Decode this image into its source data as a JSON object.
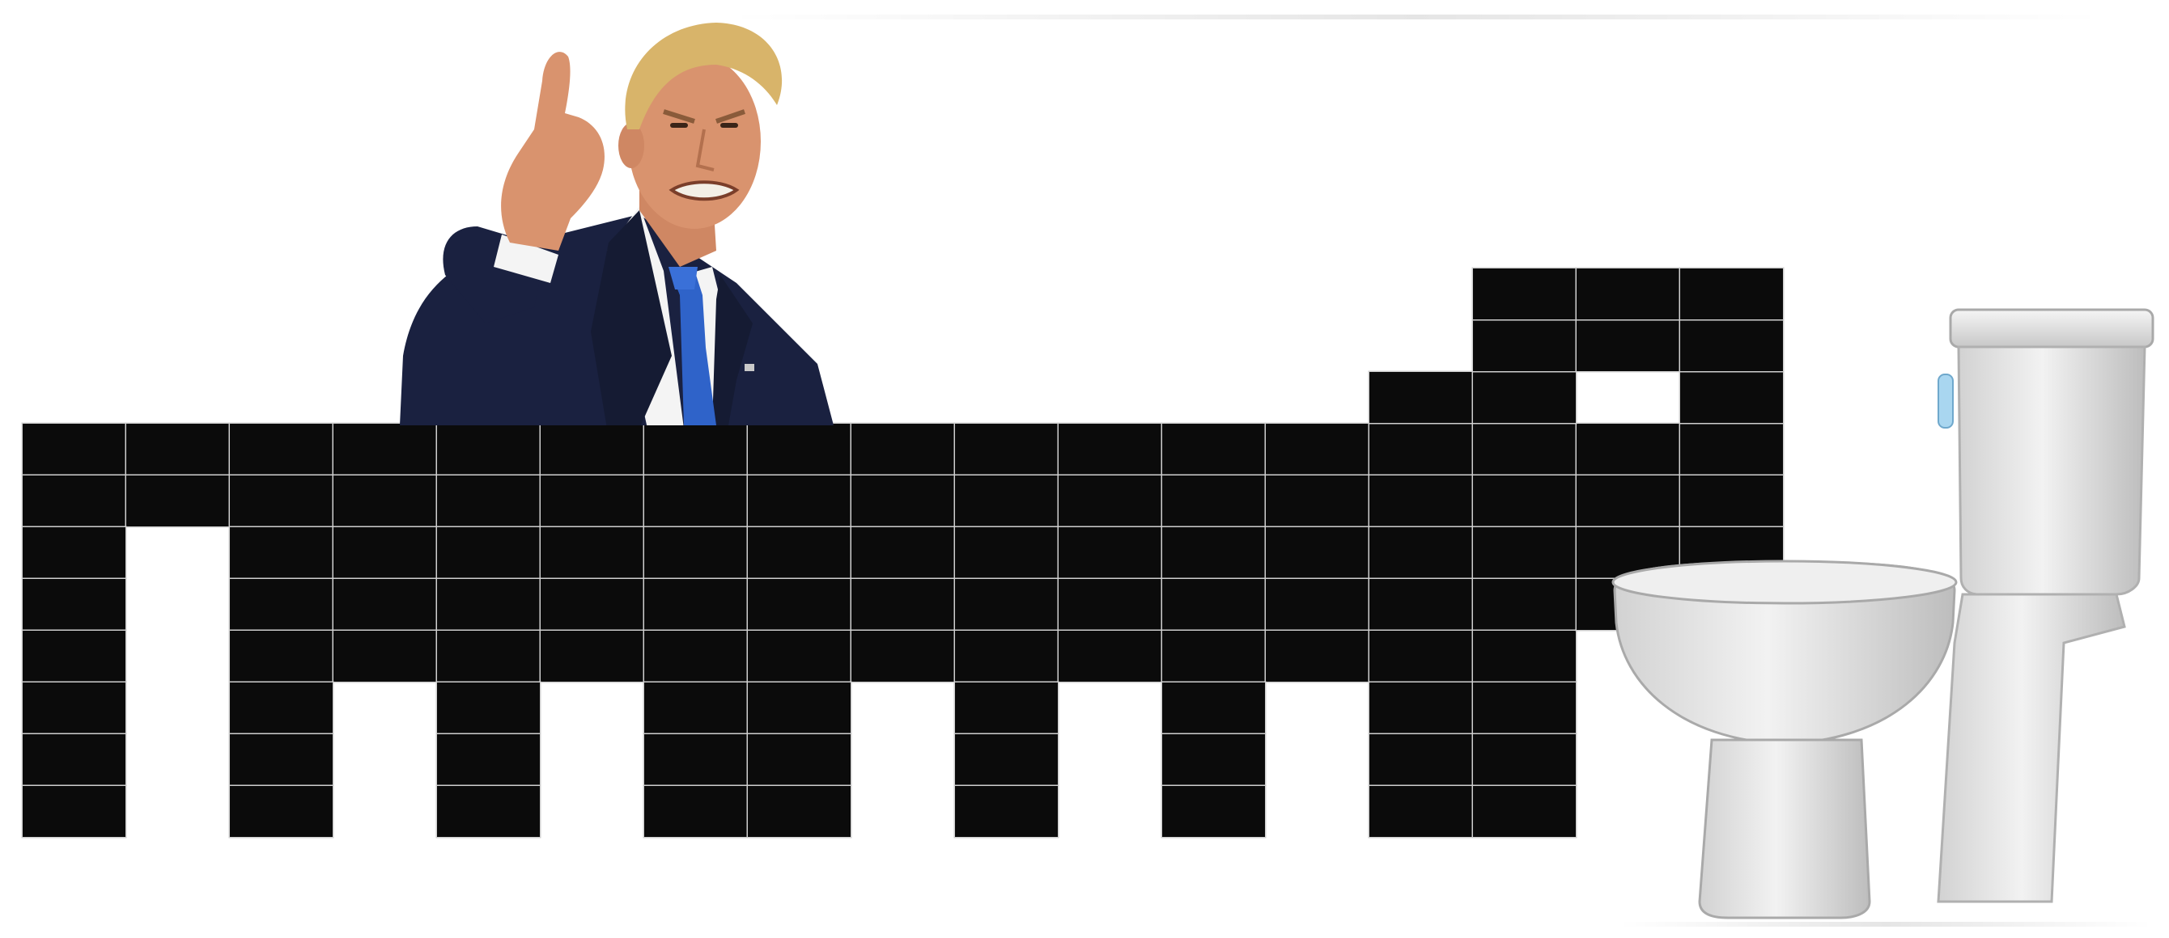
{
  "scene": {
    "type": "meme-illustration",
    "elements": [
      "angry-man-in-suit",
      "black-brick-wall",
      "toilet"
    ]
  },
  "colors": {
    "background": "#ffffff",
    "brick": "#0b0b0b",
    "mortar": "#cfcfcf",
    "suit": "#1a2140",
    "shirt": "#f4f4f4",
    "tie": "#2f63c9",
    "skin": "#d9936e",
    "hair": "#d8b46a",
    "porcelain": "#e3e3e3"
  },
  "icons": {
    "person": "angry-man-pointing-icon",
    "wall": "brick-wall-icon",
    "fixture": "toilet-icon"
  }
}
